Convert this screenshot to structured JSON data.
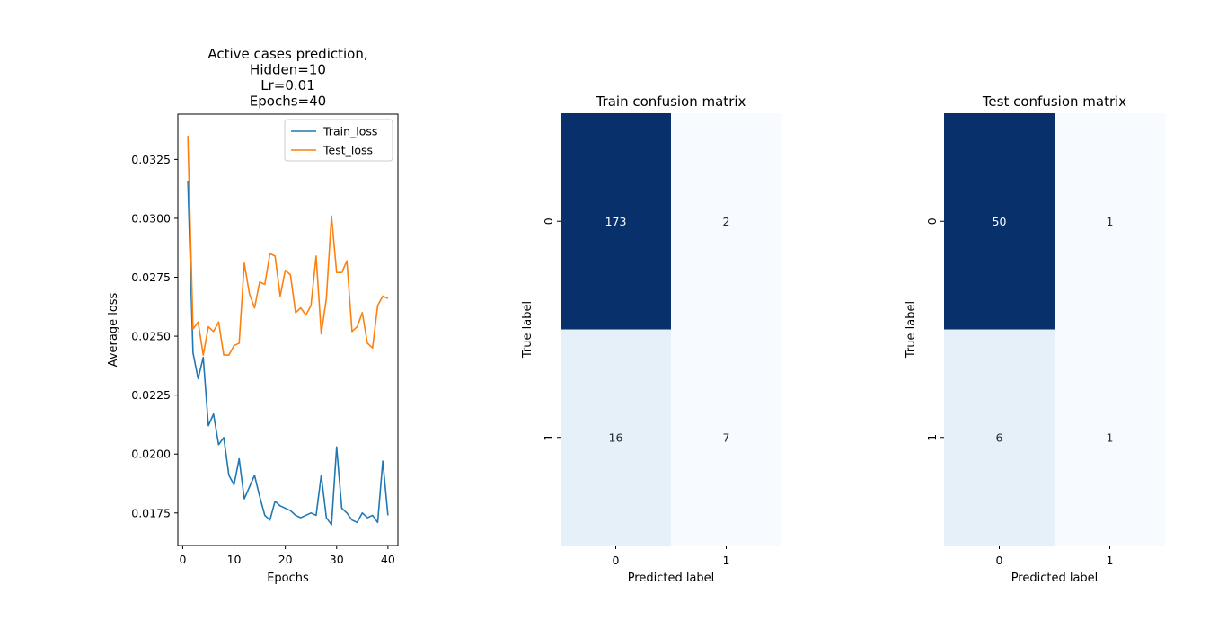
{
  "chart_data": [
    {
      "type": "line",
      "title_lines": [
        "Active cases prediction,",
        "Hidden=10",
        "Lr=0.01",
        "Epochs=40"
      ],
      "xlabel": "Epochs",
      "ylabel": "Average loss",
      "xlim": [
        -0.95,
        41.95
      ],
      "ylim": [
        0.01612,
        0.03442
      ],
      "xticks": [
        0,
        10,
        20,
        30,
        40
      ],
      "yticks": [
        0.0175,
        0.02,
        0.0225,
        0.025,
        0.0275,
        0.03,
        0.0325
      ],
      "ytick_labels": [
        "0.0175",
        "0.0200",
        "0.0225",
        "0.0250",
        "0.0275",
        "0.0300",
        "0.0325"
      ],
      "legend_position": "upper right",
      "x": [
        1,
        2,
        3,
        4,
        5,
        6,
        7,
        8,
        9,
        10,
        11,
        12,
        13,
        14,
        15,
        16,
        17,
        18,
        19,
        20,
        21,
        22,
        23,
        24,
        25,
        26,
        27,
        28,
        29,
        30,
        31,
        32,
        33,
        34,
        35,
        36,
        37,
        38,
        39,
        40
      ],
      "series": [
        {
          "name": "Train_loss",
          "color": "#1f77b4",
          "values": [
            0.0316,
            0.0243,
            0.0232,
            0.0241,
            0.0212,
            0.0217,
            0.0204,
            0.0207,
            0.0191,
            0.0187,
            0.0198,
            0.0181,
            0.0186,
            0.0191,
            0.0182,
            0.0174,
            0.0172,
            0.018,
            0.0178,
            0.0177,
            0.0176,
            0.0174,
            0.0173,
            0.0174,
            0.0175,
            0.0174,
            0.0191,
            0.0173,
            0.017,
            0.0203,
            0.0177,
            0.0175,
            0.0172,
            0.0171,
            0.0175,
            0.0173,
            0.0174,
            0.0171,
            0.0197,
            0.0174
          ]
        },
        {
          "name": "Test_loss",
          "color": "#ff7f0e",
          "values": [
            0.0335,
            0.0253,
            0.0256,
            0.0242,
            0.0254,
            0.0252,
            0.0256,
            0.0242,
            0.0242,
            0.0246,
            0.0247,
            0.0281,
            0.0268,
            0.0262,
            0.0273,
            0.0272,
            0.0285,
            0.0284,
            0.0267,
            0.0278,
            0.0276,
            0.026,
            0.0262,
            0.0259,
            0.0263,
            0.0284,
            0.0251,
            0.0266,
            0.0301,
            0.0277,
            0.0277,
            0.0282,
            0.0252,
            0.0254,
            0.026,
            0.0247,
            0.0245,
            0.0263,
            0.0267,
            0.0266
          ]
        }
      ]
    },
    {
      "type": "heatmap",
      "title": "Train confusion matrix",
      "xlabel": "Predicted label",
      "ylabel": "True label",
      "row_labels": [
        "0",
        "1"
      ],
      "col_labels": [
        "0",
        "1"
      ],
      "values": [
        [
          173,
          2
        ],
        [
          16,
          7
        ]
      ],
      "cell_colors": [
        [
          "#08306b",
          "#f7fbff"
        ],
        [
          "#e5f0f9",
          "#f7fbff"
        ]
      ],
      "colormap": "Blues"
    },
    {
      "type": "heatmap",
      "title": "Test confusion matrix",
      "xlabel": "Predicted label",
      "ylabel": "True label",
      "row_labels": [
        "0",
        "1"
      ],
      "col_labels": [
        "0",
        "1"
      ],
      "values": [
        [
          50,
          1
        ],
        [
          6,
          1
        ]
      ],
      "cell_colors": [
        [
          "#08306b",
          "#f7fbff"
        ],
        [
          "#e5f0f9",
          "#f7fbff"
        ]
      ],
      "colormap": "Blues"
    }
  ]
}
